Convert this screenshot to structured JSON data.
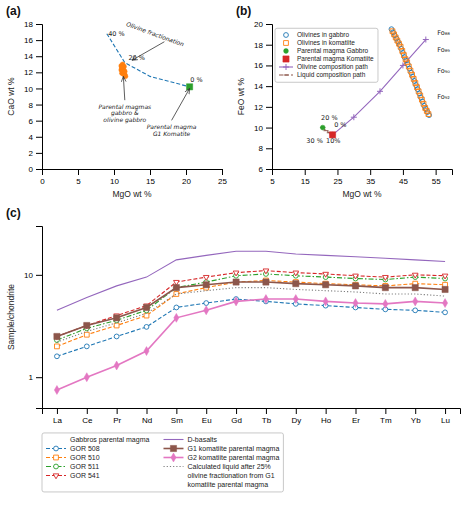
{
  "chart_data": [
    {
      "type": "scatter",
      "title": "(a)",
      "xlabel": "MgO wt %",
      "ylabel": "CaO wt %",
      "xlim": [
        0,
        25
      ],
      "ylim": [
        0,
        18
      ],
      "xticks": [
        0,
        5,
        10,
        15,
        20,
        25
      ],
      "yticks": [
        0,
        2,
        4,
        6,
        8,
        10,
        12,
        14,
        16,
        18
      ],
      "series": [
        {
          "type": "line",
          "line_style": "dashed",
          "marker": "none",
          "x": [
            9.0,
            11.5,
            15.0,
            20.5
          ],
          "values": [
            16.8,
            13.2,
            11.5,
            10.2
          ]
        },
        {
          "type": "scatter",
          "marker": "circle",
          "x": [
            11.0,
            11.2,
            11.4,
            11.1,
            11.3,
            11.5,
            11.6,
            11.2,
            11.4,
            11.0,
            11.3,
            11.1,
            11.5
          ],
          "values": [
            12.8,
            12.5,
            12.2,
            11.9,
            12.0,
            11.7,
            11.5,
            13.0,
            12.7,
            12.3,
            11.8,
            12.6,
            12.1
          ]
        },
        {
          "type": "scatter",
          "marker": "square",
          "x": [
            20.5
          ],
          "values": [
            10.2
          ]
        }
      ],
      "annotations": [
        {
          "x": 17.0,
          "y": 15.8,
          "arrow_x": 12.5,
          "arrow_y": 13.5
        },
        {
          "text": "Olivine fractionation",
          "x": 15.5,
          "y": 16.2
        },
        {
          "text": "40 %",
          "x": 9.2,
          "y": 16.5
        },
        {
          "text": "20 %",
          "x": 12.0,
          "y": 13.5
        },
        {
          "text": "0 %",
          "x": 20.6,
          "y": 10.8
        },
        {
          "text": "Parental magmas\ngabbro &\nolivine gabbro",
          "x": 11.5,
          "y": 7.5,
          "arrow_x": 11.3,
          "arrow_y": 11.5
        },
        {
          "text": "Parental magma\nG1 Komatite",
          "x": 18.0,
          "y": 5.0,
          "arrow_x": 20.5,
          "arrow_y": 10.0
        }
      ]
    },
    {
      "type": "scatter",
      "title": "(b)",
      "xlabel": "MgO wt %",
      "ylabel": "FeO wt %",
      "xlim": [
        5,
        60
      ],
      "ylim": [
        6,
        20
      ],
      "xticks": [
        5,
        15,
        25,
        35,
        45,
        55
      ],
      "yticks": [
        6,
        8,
        10,
        12,
        14,
        16,
        18,
        20
      ],
      "legend": "upper left",
      "series": [
        {
          "name": "Olivines in gabbro",
          "type": "scatter",
          "marker": "open-circle",
          "x": [
            41.5,
            42.0,
            42.5,
            43.0,
            43.5,
            44.0,
            44.5,
            45.0,
            45.5,
            46.0,
            46.5,
            47.0,
            47.5,
            48.0,
            48.5,
            49.0,
            49.5,
            50.0,
            50.5,
            51.0,
            51.5,
            52.0,
            52.5,
            53.0
          ],
          "values": [
            19.5,
            19.2,
            18.9,
            18.6,
            18.3,
            18.0,
            17.6,
            17.2,
            16.8,
            16.5,
            16.1,
            15.7,
            15.3,
            14.9,
            14.5,
            14.1,
            13.7,
            13.3,
            12.9,
            12.5,
            12.1,
            11.8,
            11.5,
            11.2
          ]
        },
        {
          "name": "Olivines in komatiite",
          "type": "scatter",
          "marker": "open-square",
          "x": [
            41.8,
            42.3,
            42.8,
            43.3,
            43.8,
            44.3,
            44.8,
            45.3,
            45.8,
            46.3,
            46.8,
            47.3,
            47.8,
            48.3,
            48.8,
            49.3,
            49.8,
            50.3,
            50.8,
            51.3,
            51.8,
            52.3,
            52.8
          ],
          "values": [
            19.3,
            19.0,
            18.7,
            18.4,
            18.1,
            17.8,
            17.4,
            17.0,
            16.6,
            16.3,
            15.9,
            15.5,
            15.1,
            14.7,
            14.3,
            13.9,
            13.5,
            13.1,
            12.7,
            12.3,
            11.9,
            11.6,
            11.3
          ]
        },
        {
          "name": "Parental magma Gabbro",
          "type": "scatter",
          "marker": "circle",
          "x": [
            20.5
          ],
          "values": [
            10.0
          ]
        },
        {
          "name": "Parental magma Komatiite",
          "type": "scatter",
          "marker": "square",
          "x": [
            23.5
          ],
          "values": [
            9.3
          ]
        },
        {
          "name": "Olivine composition path",
          "type": "line",
          "line_style": "solid",
          "marker": "plus",
          "x": [
            23.5,
            30.0,
            38.0,
            45.0,
            52.0
          ],
          "values": [
            9.3,
            11.0,
            13.5,
            16.0,
            18.5
          ]
        },
        {
          "name": "Liquid composition path",
          "type": "line",
          "line_style": "dashed",
          "marker": "minus",
          "x": [
            20.5,
            21.5,
            22.5,
            23.5
          ],
          "values": [
            10.0,
            9.7,
            9.5,
            9.3
          ]
        }
      ],
      "annotations": [
        {
          "text": "20 %",
          "x": 20.0,
          "y": 10.75
        },
        {
          "text": "0 %",
          "x": 24.0,
          "y": 10.05
        },
        {
          "text": "10%",
          "x": 21.5,
          "y": 8.5
        },
        {
          "text": "30 %",
          "x": 15.5,
          "y": 8.5
        },
        {
          "text": "Fo₈₈",
          "x": 55.5,
          "y": 19.2
        },
        {
          "text": "Fo₈₉",
          "x": 55.5,
          "y": 17.5
        },
        {
          "text": "Fo₉₀",
          "x": 55.5,
          "y": 15.5
        },
        {
          "text": "Fo₉₂",
          "x": 55.5,
          "y": 13.0
        }
      ]
    },
    {
      "type": "line",
      "title": "(c)",
      "ylabel": "Sample/chondrite",
      "categories": [
        "La",
        "Ce",
        "Pr",
        "Nd",
        "Sm",
        "Eu",
        "Gd",
        "Tb",
        "Dy",
        "Ho",
        "Er",
        "Tm",
        "Yb",
        "Lu"
      ],
      "log": "y",
      "ylim": [
        0.5,
        30
      ],
      "yticks": [
        1,
        10
      ],
      "legend": "bottom",
      "legend_title": "Gabbros parental magma",
      "series": [
        {
          "name": "GOR 508",
          "type": "line",
          "marker": "open-circle",
          "line_style": "dashed",
          "values": [
            1.6,
            2.0,
            2.5,
            3.1,
            4.8,
            5.3,
            5.8,
            5.5,
            5.2,
            5.0,
            4.8,
            4.6,
            4.5,
            4.3
          ]
        },
        {
          "name": "GOR 510",
          "type": "line",
          "marker": "open-square",
          "line_style": "dashed",
          "values": [
            2.0,
            2.6,
            3.2,
            4.0,
            6.5,
            7.5,
            8.5,
            8.8,
            8.5,
            8.2,
            8.0,
            7.8,
            8.2,
            8.0
          ]
        },
        {
          "name": "GOR 511",
          "type": "line",
          "marker": "open-circle",
          "line_style": "dashdot",
          "values": [
            2.3,
            3.0,
            3.6,
            4.5,
            7.5,
            8.5,
            9.8,
            10.2,
            9.8,
            9.5,
            9.2,
            9.0,
            9.5,
            9.2
          ]
        },
        {
          "name": "GOR 541",
          "type": "line",
          "marker": "open-triangle-down",
          "line_style": "dashed",
          "values": [
            2.5,
            3.2,
            4.0,
            5.0,
            8.5,
            9.5,
            10.5,
            11.0,
            10.5,
            10.2,
            9.8,
            9.5,
            10.0,
            9.8
          ]
        },
        {
          "name": "D-basalts",
          "type": "line",
          "marker": "none",
          "line_style": "solid",
          "values": [
            4.5,
            6.0,
            7.8,
            9.5,
            14.0,
            15.5,
            17.0,
            17.0,
            16.0,
            15.5,
            15.0,
            14.5,
            14.0,
            13.5
          ]
        },
        {
          "name": "G1 komatiite parental magma",
          "type": "line",
          "marker": "square",
          "line_style": "solid",
          "values": [
            2.5,
            3.2,
            3.8,
            4.8,
            7.5,
            8.0,
            8.5,
            8.5,
            8.2,
            8.0,
            7.8,
            7.5,
            7.5,
            7.2
          ]
        },
        {
          "name": "G2 komatiite parental magma",
          "type": "line",
          "marker": "diamond",
          "line_style": "solid",
          "values": [
            0.75,
            1.0,
            1.3,
            1.8,
            3.8,
            4.5,
            5.5,
            5.8,
            5.8,
            5.5,
            5.3,
            5.2,
            5.5,
            5.3
          ]
        },
        {
          "name": "Calculated liquid after 25%\nolivine fractionation from G1\nkomatiite parental magma",
          "type": "line",
          "marker": "none",
          "line_style": "dotted",
          "values": [
            2.2,
            2.8,
            3.4,
            4.2,
            6.5,
            7.0,
            7.5,
            7.5,
            7.2,
            7.0,
            6.8,
            6.5,
            6.5,
            6.2
          ]
        }
      ]
    }
  ]
}
